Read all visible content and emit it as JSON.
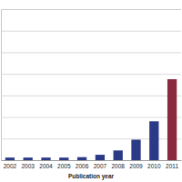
{
  "chart_data": {
    "type": "bar",
    "x_label": "Publication year",
    "categories": [
      "2002",
      "2003",
      "2004",
      "2005",
      "2006",
      "2007",
      "2008",
      "2009",
      "2010",
      "2011"
    ],
    "values": [
      0.12,
      0.12,
      0.12,
      0.12,
      0.14,
      0.25,
      0.45,
      0.95,
      1.8,
      3.75
    ],
    "colors": [
      "#2b3a86",
      "#2b3a86",
      "#2b3a86",
      "#2b3a86",
      "#2b3a86",
      "#2b3a86",
      "#2b3a86",
      "#2b3a86",
      "#2b3a86",
      "#8b2a3c"
    ],
    "ylim": [
      0,
      7
    ],
    "yticks": [
      0,
      1,
      2,
      3,
      4,
      5,
      6,
      7
    ],
    "grid": true,
    "tick_labels": "x"
  }
}
